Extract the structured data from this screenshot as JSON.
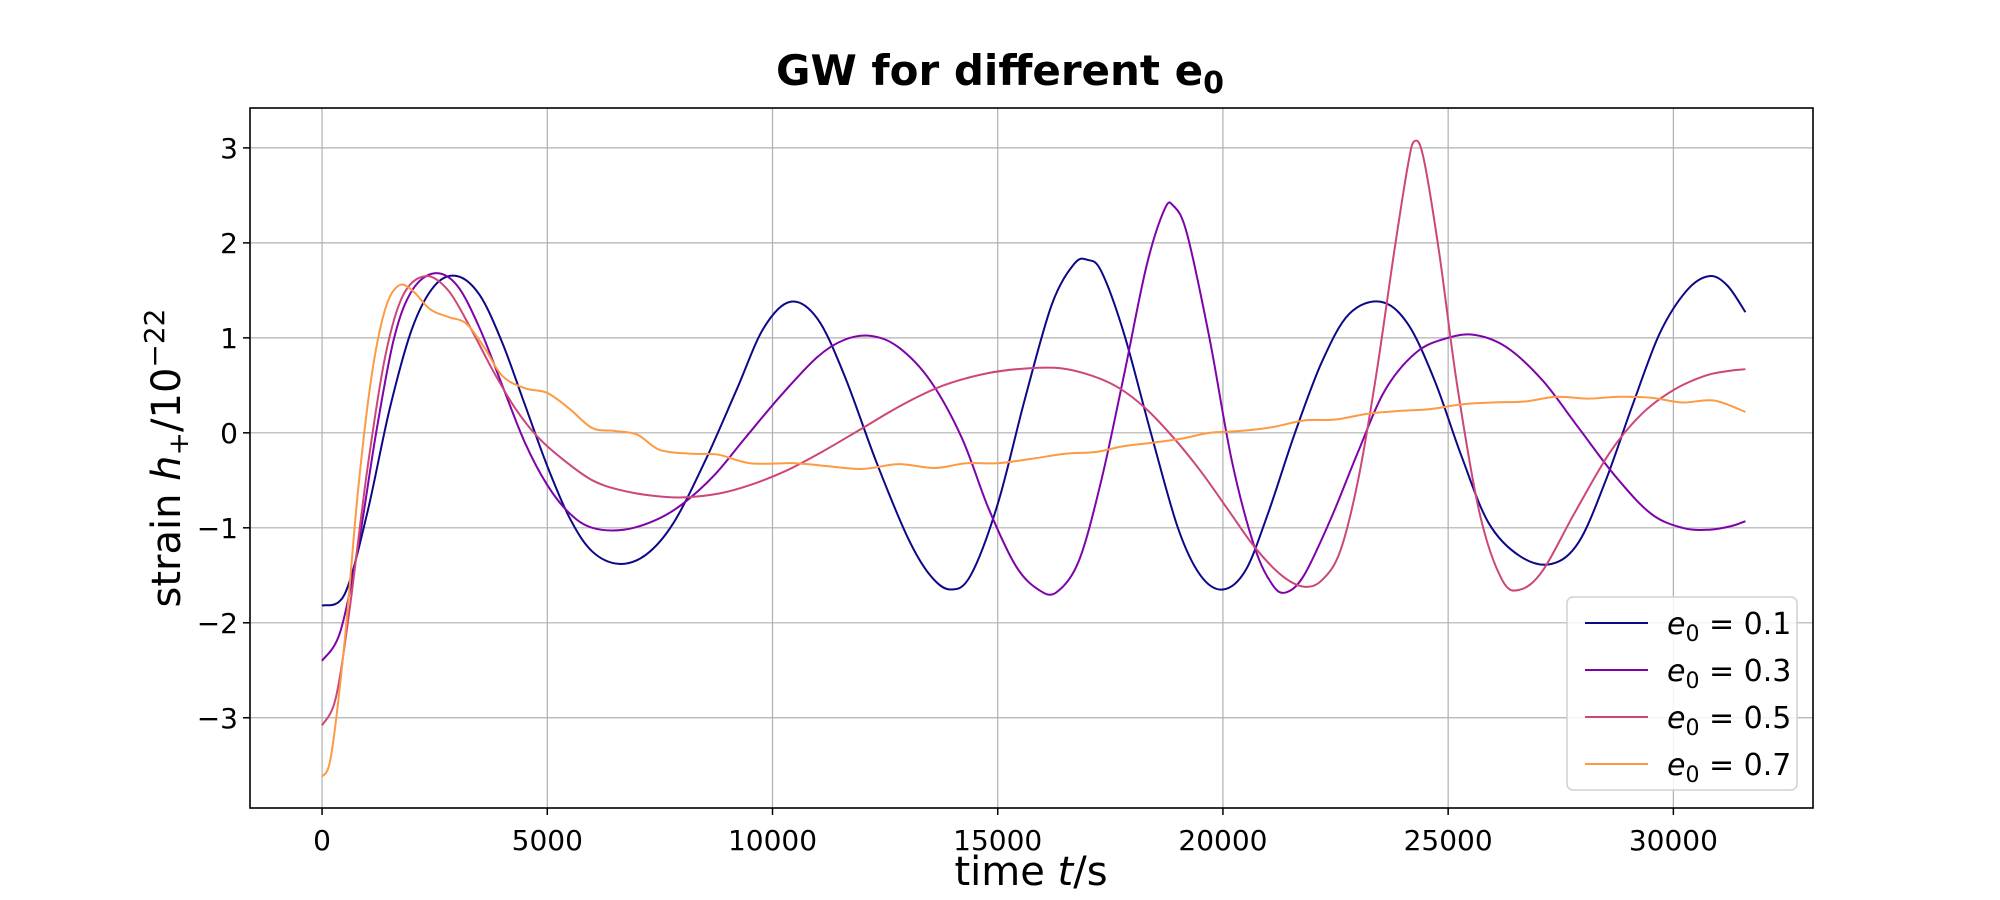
{
  "chart_data": {
    "type": "line",
    "title": "GW for different e",
    "title_subscript": "0",
    "xlabel": {
      "prefix": "time ",
      "var": "t",
      "suffix": "/s"
    },
    "ylabel": {
      "prefix": "strain ",
      "var": "h",
      "sub": "+",
      "mid": "/10",
      "sup": "−22"
    },
    "xlim": [
      -1600,
      33100
    ],
    "ylim": [
      -3.95,
      3.42
    ],
    "xticks": [
      0,
      5000,
      10000,
      15000,
      20000,
      25000,
      30000
    ],
    "yticks": [
      -3,
      -2,
      -1,
      0,
      1,
      2,
      3
    ],
    "grid": true,
    "legend_position": "bottom-right",
    "series": [
      {
        "name": "e0 = 0.1",
        "legend_var": "e",
        "legend_sub": "0",
        "legend_val": " = 0.1",
        "color": "#0d0887",
        "points": [
          [
            0,
            -1.82
          ],
          [
            500,
            -1.7
          ],
          [
            1000,
            -0.85
          ],
          [
            1500,
            0.25
          ],
          [
            2000,
            1.1
          ],
          [
            2500,
            1.55
          ],
          [
            3000,
            1.65
          ],
          [
            3500,
            1.45
          ],
          [
            4000,
            0.95
          ],
          [
            4500,
            0.3
          ],
          [
            5000,
            -0.35
          ],
          [
            5500,
            -0.9
          ],
          [
            6000,
            -1.25
          ],
          [
            6600,
            -1.38
          ],
          [
            7200,
            -1.28
          ],
          [
            7800,
            -0.95
          ],
          [
            8500,
            -0.3
          ],
          [
            9200,
            0.45
          ],
          [
            9800,
            1.1
          ],
          [
            10400,
            1.38
          ],
          [
            11000,
            1.2
          ],
          [
            11600,
            0.6
          ],
          [
            12300,
            -0.3
          ],
          [
            13000,
            -1.1
          ],
          [
            13500,
            -1.5
          ],
          [
            13950,
            -1.65
          ],
          [
            14400,
            -1.5
          ],
          [
            15000,
            -0.75
          ],
          [
            15600,
            0.35
          ],
          [
            16200,
            1.35
          ],
          [
            16700,
            1.78
          ],
          [
            17000,
            1.82
          ],
          [
            17300,
            1.7
          ],
          [
            17800,
            1.05
          ],
          [
            18400,
            0.0
          ],
          [
            19000,
            -1.0
          ],
          [
            19500,
            -1.5
          ],
          [
            20000,
            -1.65
          ],
          [
            20500,
            -1.45
          ],
          [
            21000,
            -0.85
          ],
          [
            21600,
            0.0
          ],
          [
            22200,
            0.75
          ],
          [
            22800,
            1.25
          ],
          [
            23500,
            1.38
          ],
          [
            24100,
            1.15
          ],
          [
            24700,
            0.55
          ],
          [
            25300,
            -0.25
          ],
          [
            25900,
            -0.95
          ],
          [
            26600,
            -1.3
          ],
          [
            27300,
            -1.38
          ],
          [
            27900,
            -1.15
          ],
          [
            28500,
            -0.5
          ],
          [
            29100,
            0.3
          ],
          [
            29700,
            1.05
          ],
          [
            30300,
            1.5
          ],
          [
            30800,
            1.65
          ],
          [
            31200,
            1.55
          ],
          [
            31600,
            1.27
          ]
        ]
      },
      {
        "name": "e0 = 0.3",
        "legend_var": "e",
        "legend_sub": "0",
        "legend_val": " = 0.3",
        "color": "#7e03a8",
        "points": [
          [
            0,
            -2.4
          ],
          [
            400,
            -2.1
          ],
          [
            800,
            -1.2
          ],
          [
            1200,
            0.0
          ],
          [
            1600,
            1.0
          ],
          [
            2000,
            1.5
          ],
          [
            2500,
            1.68
          ],
          [
            3000,
            1.55
          ],
          [
            3500,
            1.1
          ],
          [
            4000,
            0.5
          ],
          [
            4500,
            -0.1
          ],
          [
            5000,
            -0.55
          ],
          [
            5500,
            -0.85
          ],
          [
            6000,
            -1.0
          ],
          [
            6700,
            -1.02
          ],
          [
            7400,
            -0.92
          ],
          [
            8000,
            -0.75
          ],
          [
            8700,
            -0.45
          ],
          [
            9400,
            -0.05
          ],
          [
            10200,
            0.4
          ],
          [
            11000,
            0.8
          ],
          [
            11600,
            0.98
          ],
          [
            12200,
            1.02
          ],
          [
            12800,
            0.9
          ],
          [
            13500,
            0.55
          ],
          [
            14200,
            -0.05
          ],
          [
            14800,
            -0.8
          ],
          [
            15400,
            -1.4
          ],
          [
            15900,
            -1.65
          ],
          [
            16300,
            -1.68
          ],
          [
            16800,
            -1.35
          ],
          [
            17300,
            -0.5
          ],
          [
            17800,
            0.6
          ],
          [
            18300,
            1.75
          ],
          [
            18700,
            2.35
          ],
          [
            18900,
            2.39
          ],
          [
            19200,
            2.1
          ],
          [
            19700,
            1.0
          ],
          [
            20200,
            -0.3
          ],
          [
            20700,
            -1.2
          ],
          [
            21100,
            -1.6
          ],
          [
            21400,
            -1.68
          ],
          [
            21800,
            -1.5
          ],
          [
            22400,
            -0.9
          ],
          [
            23000,
            -0.2
          ],
          [
            23600,
            0.45
          ],
          [
            24300,
            0.85
          ],
          [
            25000,
            1.0
          ],
          [
            25600,
            1.03
          ],
          [
            26300,
            0.9
          ],
          [
            27100,
            0.55
          ],
          [
            27900,
            0.05
          ],
          [
            28700,
            -0.45
          ],
          [
            29500,
            -0.85
          ],
          [
            30200,
            -1.0
          ],
          [
            30800,
            -1.02
          ],
          [
            31300,
            -0.98
          ],
          [
            31600,
            -0.93
          ]
        ]
      },
      {
        "name": "e0 = 0.5",
        "legend_var": "e",
        "legend_sub": "0",
        "legend_val": " = 0.5",
        "color": "#cc4778",
        "points": [
          [
            0,
            -3.08
          ],
          [
            300,
            -2.8
          ],
          [
            600,
            -1.9
          ],
          [
            1000,
            -0.4
          ],
          [
            1400,
            0.8
          ],
          [
            1800,
            1.45
          ],
          [
            2300,
            1.65
          ],
          [
            2800,
            1.5
          ],
          [
            3300,
            1.1
          ],
          [
            3800,
            0.65
          ],
          [
            4300,
            0.25
          ],
          [
            4800,
            -0.05
          ],
          [
            5400,
            -0.3
          ],
          [
            6000,
            -0.5
          ],
          [
            6600,
            -0.6
          ],
          [
            7300,
            -0.66
          ],
          [
            8000,
            -0.68
          ],
          [
            8800,
            -0.64
          ],
          [
            9500,
            -0.55
          ],
          [
            10300,
            -0.4
          ],
          [
            11100,
            -0.2
          ],
          [
            12000,
            0.05
          ],
          [
            12900,
            0.3
          ],
          [
            13800,
            0.5
          ],
          [
            14800,
            0.63
          ],
          [
            15700,
            0.68
          ],
          [
            16400,
            0.68
          ],
          [
            17100,
            0.6
          ],
          [
            17700,
            0.47
          ],
          [
            18300,
            0.25
          ],
          [
            18900,
            -0.05
          ],
          [
            19500,
            -0.4
          ],
          [
            20100,
            -0.8
          ],
          [
            20700,
            -1.2
          ],
          [
            21300,
            -1.5
          ],
          [
            21800,
            -1.62
          ],
          [
            22200,
            -1.55
          ],
          [
            22600,
            -1.25
          ],
          [
            23000,
            -0.5
          ],
          [
            23400,
            0.6
          ],
          [
            23800,
            1.9
          ],
          [
            24100,
            2.8
          ],
          [
            24250,
            3.07
          ],
          [
            24450,
            2.9
          ],
          [
            24800,
            1.9
          ],
          [
            25200,
            0.5
          ],
          [
            25700,
            -0.85
          ],
          [
            26200,
            -1.55
          ],
          [
            26600,
            -1.65
          ],
          [
            27100,
            -1.45
          ],
          [
            27800,
            -0.85
          ],
          [
            28600,
            -0.2
          ],
          [
            29300,
            0.2
          ],
          [
            30000,
            0.45
          ],
          [
            30700,
            0.6
          ],
          [
            31200,
            0.65
          ],
          [
            31600,
            0.67
          ]
        ]
      },
      {
        "name": "e0 = 0.7",
        "legend_var": "e",
        "legend_sub": "0",
        "legend_val": " = 0.7",
        "color": "#fd9a44",
        "points": [
          [
            0,
            -3.62
          ],
          [
            200,
            -3.4
          ],
          [
            500,
            -2.2
          ],
          [
            800,
            -0.6
          ],
          [
            1100,
            0.6
          ],
          [
            1400,
            1.3
          ],
          [
            1700,
            1.55
          ],
          [
            2000,
            1.5
          ],
          [
            2400,
            1.3
          ],
          [
            2800,
            1.22
          ],
          [
            3200,
            1.15
          ],
          [
            3600,
            0.9
          ],
          [
            4000,
            0.6
          ],
          [
            4500,
            0.47
          ],
          [
            5000,
            0.42
          ],
          [
            5500,
            0.25
          ],
          [
            6000,
            0.05
          ],
          [
            6500,
            0.02
          ],
          [
            7000,
            -0.02
          ],
          [
            7500,
            -0.18
          ],
          [
            8200,
            -0.22
          ],
          [
            8800,
            -0.23
          ],
          [
            9500,
            -0.32
          ],
          [
            10500,
            -0.32
          ],
          [
            11200,
            -0.35
          ],
          [
            12000,
            -0.38
          ],
          [
            12800,
            -0.33
          ],
          [
            13600,
            -0.37
          ],
          [
            14300,
            -0.32
          ],
          [
            15000,
            -0.32
          ],
          [
            15800,
            -0.27
          ],
          [
            16500,
            -0.22
          ],
          [
            17200,
            -0.2
          ],
          [
            17800,
            -0.14
          ],
          [
            18500,
            -0.1
          ],
          [
            19100,
            -0.06
          ],
          [
            19700,
            0.0
          ],
          [
            20400,
            0.02
          ],
          [
            21100,
            0.06
          ],
          [
            21800,
            0.13
          ],
          [
            22500,
            0.14
          ],
          [
            23200,
            0.2
          ],
          [
            23900,
            0.23
          ],
          [
            24600,
            0.25
          ],
          [
            25300,
            0.3
          ],
          [
            26000,
            0.32
          ],
          [
            26700,
            0.33
          ],
          [
            27400,
            0.38
          ],
          [
            28100,
            0.36
          ],
          [
            28800,
            0.38
          ],
          [
            29500,
            0.37
          ],
          [
            30200,
            0.32
          ],
          [
            30900,
            0.34
          ],
          [
            31600,
            0.22
          ]
        ]
      }
    ]
  }
}
